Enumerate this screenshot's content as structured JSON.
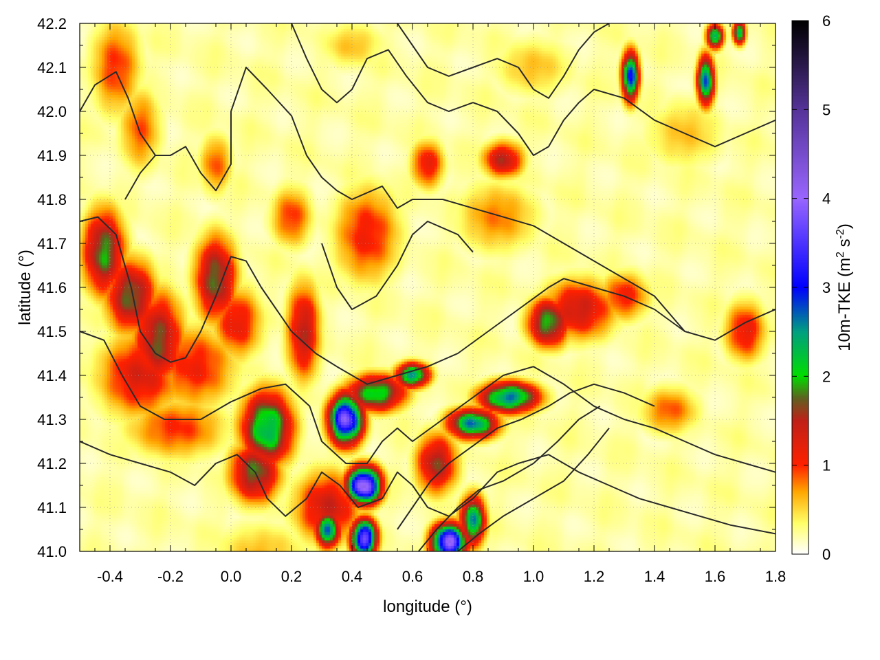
{
  "chart_data": {
    "type": "heatmap",
    "title": "",
    "xlabel": "longitude (°)",
    "ylabel": "latitude (°)",
    "xlim": [
      -0.5,
      1.8
    ],
    "ylim": [
      41.0,
      42.2
    ],
    "x_ticks": [
      -0.4,
      -0.2,
      0.0,
      0.2,
      0.4,
      0.6,
      0.8,
      1.0,
      1.2,
      1.4,
      1.6,
      1.8
    ],
    "x_tick_labels": [
      "-0.4",
      "-0.2",
      "0.0",
      "0.2",
      "0.4",
      "0.6",
      "0.8",
      "1.0",
      "1.2",
      "1.4",
      "1.6",
      "1.8"
    ],
    "y_ticks": [
      41.0,
      41.1,
      41.2,
      41.3,
      41.4,
      41.5,
      41.6,
      41.7,
      41.8,
      41.9,
      42.0,
      42.1,
      42.2
    ],
    "y_tick_labels": [
      "41.0",
      "41.1",
      "41.2",
      "41.3",
      "41.4",
      "41.5",
      "41.6",
      "41.7",
      "41.8",
      "41.9",
      "42.0",
      "42.1",
      "42.2"
    ],
    "grid": true,
    "colorbar": {
      "label_main": "10m-TKE (m",
      "label_sup1": "2",
      "label_mid": " s",
      "label_sup2": "-2",
      "label_end": ")",
      "range": [
        0,
        6
      ],
      "ticks": [
        0,
        1,
        2,
        3,
        4,
        5,
        6
      ],
      "tick_labels": [
        "0",
        "1",
        "2",
        "3",
        "4",
        "5",
        "6"
      ],
      "palette": [
        {
          "v": 0.0,
          "color": "#ffffff"
        },
        {
          "v": 0.35,
          "color": "#ffff66"
        },
        {
          "v": 0.7,
          "color": "#ffa500"
        },
        {
          "v": 1.0,
          "color": "#ff2000"
        },
        {
          "v": 1.5,
          "color": "#c02018"
        },
        {
          "v": 1.75,
          "color": "#606020"
        },
        {
          "v": 2.0,
          "color": "#00dd00"
        },
        {
          "v": 2.5,
          "color": "#00a080"
        },
        {
          "v": 3.0,
          "color": "#0000ff"
        },
        {
          "v": 4.0,
          "color": "#9966ff"
        },
        {
          "v": 5.0,
          "color": "#553399"
        },
        {
          "v": 6.0,
          "color": "#000000"
        }
      ]
    },
    "features": [
      {
        "lon": -0.38,
        "lat": 42.1,
        "sx": 0.06,
        "sy": 0.08,
        "v": 1.0
      },
      {
        "lon": -0.3,
        "lat": 41.96,
        "sx": 0.05,
        "sy": 0.07,
        "v": 0.9
      },
      {
        "lon": -0.42,
        "lat": 41.68,
        "sx": 0.05,
        "sy": 0.07,
        "v": 1.9
      },
      {
        "lon": -0.33,
        "lat": 41.58,
        "sx": 0.06,
        "sy": 0.06,
        "v": 1.8
      },
      {
        "lon": -0.24,
        "lat": 41.48,
        "sx": 0.06,
        "sy": 0.08,
        "v": 1.7
      },
      {
        "lon": -0.3,
        "lat": 41.4,
        "sx": 0.1,
        "sy": 0.07,
        "v": 1.3
      },
      {
        "lon": -0.12,
        "lat": 41.42,
        "sx": 0.1,
        "sy": 0.07,
        "v": 1.1
      },
      {
        "lon": -0.18,
        "lat": 41.28,
        "sx": 0.12,
        "sy": 0.05,
        "v": 1.0
      },
      {
        "lon": -0.05,
        "lat": 41.62,
        "sx": 0.05,
        "sy": 0.07,
        "v": 1.8
      },
      {
        "lon": 0.02,
        "lat": 41.52,
        "sx": 0.06,
        "sy": 0.06,
        "v": 1.2
      },
      {
        "lon": -0.05,
        "lat": 41.88,
        "sx": 0.04,
        "sy": 0.05,
        "v": 0.9
      },
      {
        "lon": 0.24,
        "lat": 41.5,
        "sx": 0.04,
        "sy": 0.08,
        "v": 1.5
      },
      {
        "lon": 0.2,
        "lat": 41.76,
        "sx": 0.05,
        "sy": 0.05,
        "v": 1.0
      },
      {
        "lon": 0.12,
        "lat": 41.28,
        "sx": 0.06,
        "sy": 0.06,
        "v": 2.4
      },
      {
        "lon": 0.08,
        "lat": 41.18,
        "sx": 0.06,
        "sy": 0.05,
        "v": 1.8
      },
      {
        "lon": 0.38,
        "lat": 41.3,
        "sx": 0.04,
        "sy": 0.04,
        "v": 3.8
      },
      {
        "lon": 0.48,
        "lat": 41.36,
        "sx": 0.07,
        "sy": 0.03,
        "v": 2.2
      },
      {
        "lon": 0.6,
        "lat": 41.4,
        "sx": 0.04,
        "sy": 0.02,
        "v": 2.6
      },
      {
        "lon": 0.44,
        "lat": 41.15,
        "sx": 0.04,
        "sy": 0.03,
        "v": 4.2
      },
      {
        "lon": 0.32,
        "lat": 41.1,
        "sx": 0.08,
        "sy": 0.06,
        "v": 1.4
      },
      {
        "lon": 0.44,
        "lat": 41.03,
        "sx": 0.03,
        "sy": 0.03,
        "v": 3.8
      },
      {
        "lon": 0.32,
        "lat": 41.05,
        "sx": 0.03,
        "sy": 0.03,
        "v": 2.6
      },
      {
        "lon": 0.72,
        "lat": 41.02,
        "sx": 0.04,
        "sy": 0.03,
        "v": 4.0
      },
      {
        "lon": 0.8,
        "lat": 41.07,
        "sx": 0.03,
        "sy": 0.04,
        "v": 2.5
      },
      {
        "lon": 0.8,
        "lat": 41.29,
        "sx": 0.06,
        "sy": 0.025,
        "v": 2.6
      },
      {
        "lon": 0.92,
        "lat": 41.35,
        "sx": 0.07,
        "sy": 0.025,
        "v": 2.7
      },
      {
        "lon": 0.68,
        "lat": 41.2,
        "sx": 0.05,
        "sy": 0.05,
        "v": 1.6
      },
      {
        "lon": 0.45,
        "lat": 41.72,
        "sx": 0.08,
        "sy": 0.08,
        "v": 1.1
      },
      {
        "lon": 0.88,
        "lat": 41.76,
        "sx": 0.1,
        "sy": 0.06,
        "v": 0.8
      },
      {
        "lon": 1.05,
        "lat": 41.52,
        "sx": 0.05,
        "sy": 0.04,
        "v": 2.0
      },
      {
        "lon": 1.15,
        "lat": 41.55,
        "sx": 0.09,
        "sy": 0.05,
        "v": 1.4
      },
      {
        "lon": 1.3,
        "lat": 41.58,
        "sx": 0.06,
        "sy": 0.04,
        "v": 1.1
      },
      {
        "lon": 1.7,
        "lat": 41.5,
        "sx": 0.05,
        "sy": 0.05,
        "v": 1.2
      },
      {
        "lon": 1.45,
        "lat": 41.32,
        "sx": 0.07,
        "sy": 0.04,
        "v": 0.9
      },
      {
        "lon": 0.9,
        "lat": 41.89,
        "sx": 0.05,
        "sy": 0.03,
        "v": 1.5
      },
      {
        "lon": 0.65,
        "lat": 41.88,
        "sx": 0.04,
        "sy": 0.04,
        "v": 1.2
      },
      {
        "lon": 1.32,
        "lat": 42.08,
        "sx": 0.02,
        "sy": 0.04,
        "v": 3.0
      },
      {
        "lon": 1.57,
        "lat": 42.07,
        "sx": 0.02,
        "sy": 0.04,
        "v": 2.8
      },
      {
        "lon": 1.6,
        "lat": 42.17,
        "sx": 0.02,
        "sy": 0.02,
        "v": 2.5
      },
      {
        "lon": 1.68,
        "lat": 42.18,
        "sx": 0.015,
        "sy": 0.02,
        "v": 2.4
      },
      {
        "lon": 0.4,
        "lat": 42.15,
        "sx": 0.08,
        "sy": 0.04,
        "v": 0.6
      },
      {
        "lon": 1.0,
        "lat": 42.1,
        "sx": 0.1,
        "sy": 0.05,
        "v": 0.6
      },
      {
        "lon": 1.5,
        "lat": 41.95,
        "sx": 0.1,
        "sy": 0.06,
        "v": 0.6
      },
      {
        "lon": 0.1,
        "lat": 41.0,
        "sx": 0.12,
        "sy": 0.05,
        "v": 0.6
      }
    ],
    "contours": [
      [
        [
          -0.5,
          42.0
        ],
        [
          -0.45,
          42.06
        ],
        [
          -0.38,
          42.09
        ],
        [
          -0.34,
          42.03
        ],
        [
          -0.3,
          41.95
        ],
        [
          -0.25,
          41.9
        ],
        [
          -0.2,
          41.9
        ],
        [
          -0.15,
          41.92
        ],
        [
          -0.1,
          41.86
        ],
        [
          -0.05,
          41.82
        ],
        [
          0.0,
          41.88
        ],
        [
          0.0,
          42.0
        ],
        [
          0.05,
          42.1
        ],
        [
          0.12,
          42.05
        ],
        [
          0.2,
          41.99
        ],
        [
          0.25,
          41.9
        ],
        [
          0.3,
          41.85
        ],
        [
          0.35,
          41.82
        ],
        [
          0.4,
          41.8
        ],
        [
          0.5,
          41.83
        ],
        [
          0.55,
          41.78
        ],
        [
          0.6,
          41.8
        ],
        [
          0.7,
          41.8
        ],
        [
          0.8,
          41.78
        ],
        [
          0.9,
          41.76
        ],
        [
          1.0,
          41.74
        ],
        [
          1.1,
          41.7
        ],
        [
          1.2,
          41.66
        ],
        [
          1.3,
          41.62
        ],
        [
          1.4,
          41.58
        ],
        [
          1.5,
          41.5
        ],
        [
          1.6,
          41.48
        ],
        [
          1.7,
          41.52
        ],
        [
          1.8,
          41.55
        ]
      ],
      [
        [
          -0.5,
          41.75
        ],
        [
          -0.44,
          41.76
        ],
        [
          -0.38,
          41.72
        ],
        [
          -0.33,
          41.6
        ],
        [
          -0.3,
          41.5
        ],
        [
          -0.25,
          41.45
        ],
        [
          -0.2,
          41.43
        ],
        [
          -0.15,
          41.44
        ],
        [
          -0.1,
          41.5
        ],
        [
          -0.05,
          41.58
        ],
        [
          0.0,
          41.67
        ],
        [
          0.05,
          41.66
        ],
        [
          0.1,
          41.6
        ],
        [
          0.15,
          41.55
        ],
        [
          0.2,
          41.5
        ],
        [
          0.28,
          41.45
        ],
        [
          0.35,
          41.42
        ],
        [
          0.45,
          41.38
        ],
        [
          0.55,
          41.4
        ],
        [
          0.65,
          41.42
        ],
        [
          0.75,
          41.45
        ],
        [
          0.85,
          41.5
        ],
        [
          0.95,
          41.55
        ],
        [
          1.05,
          41.6
        ],
        [
          1.1,
          41.62
        ],
        [
          1.2,
          41.6
        ],
        [
          1.3,
          41.58
        ],
        [
          1.4,
          41.55
        ],
        [
          1.5,
          41.5
        ]
      ],
      [
        [
          -0.5,
          41.5
        ],
        [
          -0.42,
          41.48
        ],
        [
          -0.36,
          41.4
        ],
        [
          -0.3,
          41.33
        ],
        [
          -0.22,
          41.3
        ],
        [
          -0.1,
          41.3
        ],
        [
          0.0,
          41.34
        ],
        [
          0.1,
          41.37
        ],
        [
          0.18,
          41.38
        ],
        [
          0.26,
          41.33
        ],
        [
          0.3,
          41.25
        ],
        [
          0.38,
          41.2
        ],
        [
          0.45,
          41.2
        ],
        [
          0.5,
          41.25
        ],
        [
          0.55,
          41.28
        ],
        [
          0.6,
          41.25
        ],
        [
          0.7,
          41.3
        ],
        [
          0.8,
          41.35
        ],
        [
          0.9,
          41.4
        ],
        [
          1.0,
          41.42
        ],
        [
          1.1,
          41.38
        ],
        [
          1.2,
          41.33
        ],
        [
          1.3,
          41.3
        ],
        [
          1.4,
          41.28
        ],
        [
          1.5,
          41.25
        ],
        [
          1.6,
          41.22
        ],
        [
          1.7,
          41.2
        ],
        [
          1.8,
          41.18
        ]
      ],
      [
        [
          -0.5,
          41.25
        ],
        [
          -0.4,
          41.22
        ],
        [
          -0.3,
          41.2
        ],
        [
          -0.2,
          41.18
        ],
        [
          -0.12,
          41.15
        ],
        [
          -0.05,
          41.2
        ],
        [
          0.02,
          41.22
        ],
        [
          0.08,
          41.18
        ],
        [
          0.12,
          41.12
        ],
        [
          0.18,
          41.08
        ],
        [
          0.25,
          41.12
        ],
        [
          0.3,
          41.18
        ],
        [
          0.36,
          41.15
        ],
        [
          0.42,
          41.1
        ],
        [
          0.5,
          41.12
        ],
        [
          0.55,
          41.18
        ],
        [
          0.6,
          41.15
        ],
        [
          0.65,
          41.1
        ],
        [
          0.72,
          41.08
        ],
        [
          0.8,
          41.12
        ],
        [
          0.88,
          41.18
        ],
        [
          0.95,
          41.2
        ],
        [
          1.05,
          41.22
        ],
        [
          1.15,
          41.18
        ],
        [
          1.25,
          41.15
        ],
        [
          1.35,
          41.12
        ],
        [
          1.45,
          41.1
        ],
        [
          1.55,
          41.08
        ],
        [
          1.65,
          41.06
        ],
        [
          1.8,
          41.04
        ]
      ],
      [
        [
          0.2,
          42.2
        ],
        [
          0.25,
          42.12
        ],
        [
          0.3,
          42.05
        ],
        [
          0.35,
          42.02
        ],
        [
          0.4,
          42.05
        ],
        [
          0.45,
          42.12
        ],
        [
          0.52,
          42.14
        ],
        [
          0.58,
          42.08
        ],
        [
          0.65,
          42.02
        ],
        [
          0.72,
          42.0
        ],
        [
          0.8,
          42.02
        ],
        [
          0.88,
          42.0
        ],
        [
          0.95,
          41.95
        ],
        [
          1.0,
          41.9
        ],
        [
          1.05,
          41.92
        ],
        [
          1.1,
          41.98
        ],
        [
          1.15,
          42.02
        ],
        [
          1.2,
          42.05
        ],
        [
          1.3,
          42.03
        ],
        [
          1.4,
          41.98
        ],
        [
          1.5,
          41.95
        ],
        [
          1.6,
          41.92
        ],
        [
          1.7,
          41.95
        ],
        [
          1.8,
          41.98
        ]
      ],
      [
        [
          0.55,
          42.2
        ],
        [
          0.6,
          42.15
        ],
        [
          0.65,
          42.1
        ],
        [
          0.72,
          42.08
        ],
        [
          0.8,
          42.1
        ],
        [
          0.88,
          42.12
        ],
        [
          0.95,
          42.1
        ],
        [
          1.0,
          42.05
        ],
        [
          1.05,
          42.03
        ],
        [
          1.1,
          42.08
        ],
        [
          1.15,
          42.14
        ],
        [
          1.2,
          42.18
        ],
        [
          1.25,
          42.2
        ]
      ],
      [
        [
          0.55,
          41.05
        ],
        [
          0.6,
          41.1
        ],
        [
          0.66,
          41.16
        ],
        [
          0.72,
          41.2
        ],
        [
          0.8,
          41.24
        ],
        [
          0.88,
          41.28
        ],
        [
          0.96,
          41.3
        ],
        [
          1.05,
          41.33
        ],
        [
          1.12,
          41.36
        ],
        [
          1.2,
          41.38
        ],
        [
          1.3,
          41.36
        ],
        [
          1.4,
          41.33
        ]
      ],
      [
        [
          0.62,
          41.0
        ],
        [
          0.68,
          41.05
        ],
        [
          0.75,
          41.1
        ],
        [
          0.82,
          41.14
        ],
        [
          0.9,
          41.16
        ],
        [
          1.0,
          41.2
        ],
        [
          1.08,
          41.25
        ],
        [
          1.15,
          41.3
        ],
        [
          1.22,
          41.33
        ]
      ],
      [
        [
          0.75,
          41.0
        ],
        [
          0.82,
          41.04
        ],
        [
          0.9,
          41.08
        ],
        [
          1.0,
          41.12
        ],
        [
          1.1,
          41.16
        ],
        [
          1.18,
          41.22
        ],
        [
          1.25,
          41.28
        ]
      ],
      [
        [
          -0.35,
          41.8
        ],
        [
          -0.3,
          41.86
        ],
        [
          -0.25,
          41.9
        ]
      ],
      [
        [
          0.3,
          41.7
        ],
        [
          0.35,
          41.6
        ],
        [
          0.4,
          41.55
        ],
        [
          0.48,
          41.58
        ],
        [
          0.55,
          41.65
        ],
        [
          0.6,
          41.72
        ],
        [
          0.65,
          41.75
        ],
        [
          0.75,
          41.72
        ],
        [
          0.8,
          41.68
        ]
      ]
    ]
  }
}
